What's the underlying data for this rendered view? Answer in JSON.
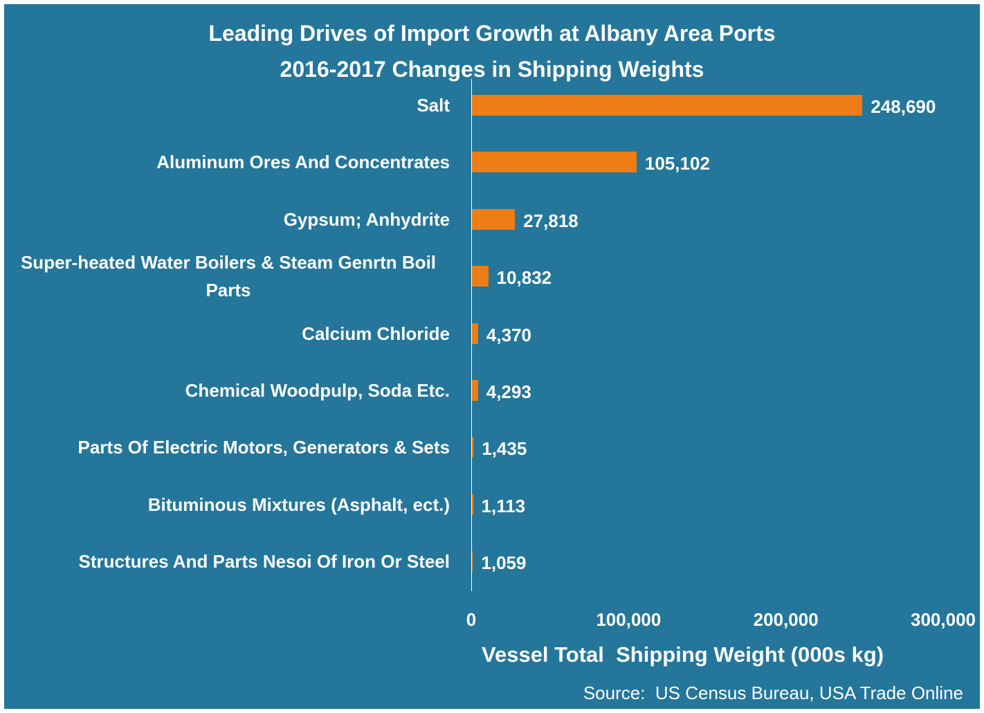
{
  "colors": {
    "background": "#24769A",
    "bar": "#ED7D14",
    "text": "#FFFFFF"
  },
  "chart_data": {
    "type": "bar",
    "orientation": "horizontal",
    "title": "Leading Drives of Import Growth at Albany Area Ports",
    "subtitle": "2016-2017 Changes in Shipping Weights",
    "xlabel": "Vessel Total  Shipping Weight (000s kg)",
    "ylabel": "",
    "xlim": [
      0,
      300000
    ],
    "x_ticks": [
      "0",
      "100,000",
      "200,000",
      "300,000"
    ],
    "grid": false,
    "legend": "none",
    "categories": [
      "Salt",
      "Aluminum Ores And Concentrates",
      "Gypsum; Anhydrite",
      "Super-heated Water Boilers & Steam Genrtn Boil Parts",
      "Calcium Chloride",
      "Chemical Woodpulp, Soda Etc.",
      "Parts Of Electric Motors, Generators & Sets",
      "Bituminous Mixtures (Asphalt, ect.)",
      "Structures And Parts Nesoi Of Iron Or Steel"
    ],
    "values": [
      248690,
      105102,
      27818,
      10832,
      4370,
      4293,
      1435,
      1113,
      1059
    ],
    "data_labels": [
      "248,690",
      "105,102",
      "27,818",
      "10,832",
      "4,370",
      "4,293",
      "1,435",
      "1,113",
      "1,059"
    ]
  },
  "source": "Source:  US Census Bureau, USA Trade Online"
}
